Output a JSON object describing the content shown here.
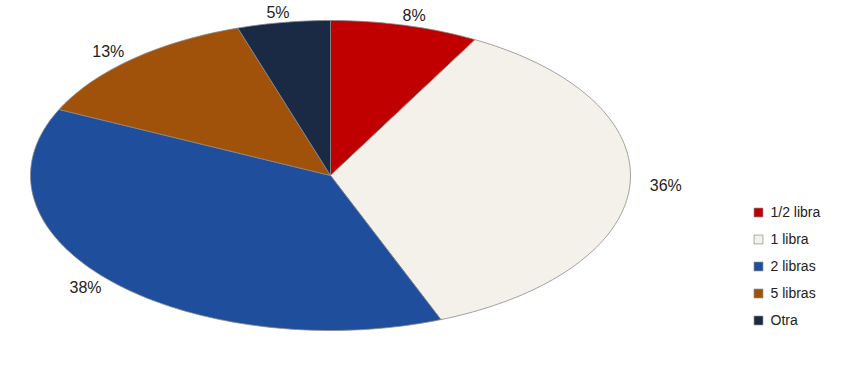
{
  "chart_data": {
    "type": "pie",
    "categories": [
      "1/2 libra",
      "1 libra",
      "2 libras",
      "5 libras",
      "Otra"
    ],
    "values": [
      8,
      36,
      38,
      13,
      5
    ],
    "value_labels": [
      "8%",
      "36%",
      "38%",
      "13%",
      "5%"
    ],
    "colors": [
      "#c00000",
      "#f4f1ea",
      "#1f4e9c",
      "#a0520a",
      "#1b2a44"
    ],
    "data_labels": true,
    "legend": "right",
    "tick_labels": false
  }
}
